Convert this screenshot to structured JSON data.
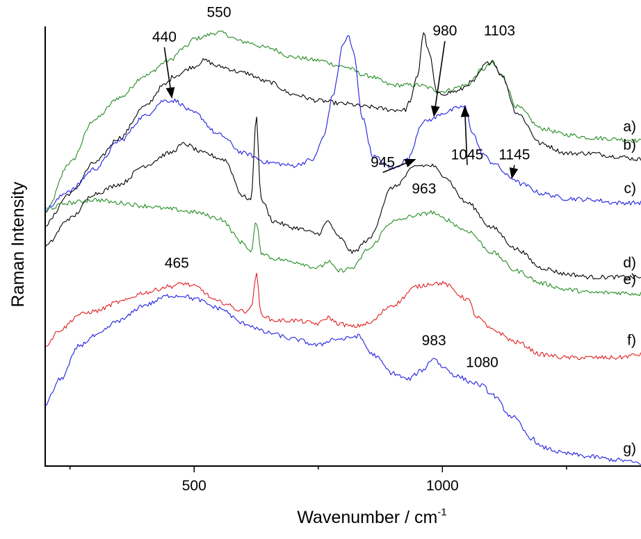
{
  "chart_data": {
    "type": "line",
    "title": "",
    "xlabel": "Wavenumber  /  cm",
    "xlabel_superscript": "-1",
    "ylabel": "Raman  Intensity",
    "xlim": [
      200,
      1400
    ],
    "ylim": [
      0,
      7.3
    ],
    "grid": false,
    "x_ticks_major": [
      500,
      1000
    ],
    "x_ticks_minor": [
      250,
      750,
      1250
    ],
    "colors": {
      "green": "#238b23",
      "black": "#000000",
      "blue": "#1f1fe0",
      "red": "#e01f1f"
    },
    "series": [
      {
        "name": "a)",
        "color": "#238b23",
        "x": [
          200,
          250,
          300,
          350,
          400,
          450,
          480,
          500,
          550,
          600,
          650,
          700,
          750,
          800,
          850,
          900,
          950,
          1000,
          1050,
          1080,
          1100,
          1120,
          1150,
          1200,
          1250,
          1300,
          1350,
          1400
        ],
        "y": [
          4.1,
          4.9,
          5.6,
          5.95,
          6.3,
          6.55,
          6.75,
          6.9,
          7.0,
          6.85,
          6.75,
          6.6,
          6.55,
          6.45,
          6.3,
          6.15,
          6.15,
          6.05,
          6.15,
          6.4,
          6.5,
          6.3,
          5.8,
          5.45,
          5.35,
          5.3,
          5.28,
          5.25
        ]
      },
      {
        "name": "b)",
        "color": "#000000",
        "x": [
          200,
          250,
          300,
          350,
          400,
          440,
          460,
          500,
          520,
          550,
          600,
          650,
          700,
          750,
          800,
          850,
          900,
          925,
          935,
          950,
          962,
          972,
          990,
          1030,
          1060,
          1090,
          1100,
          1120,
          1150,
          1200,
          1250,
          1300,
          1350,
          1400
        ],
        "y": [
          3.9,
          4.4,
          4.9,
          5.3,
          5.8,
          6.15,
          6.3,
          6.45,
          6.55,
          6.45,
          6.35,
          6.2,
          6.0,
          5.9,
          5.85,
          5.8,
          5.75,
          5.75,
          5.9,
          6.3,
          7.0,
          6.7,
          6.0,
          6.05,
          6.2,
          6.5,
          6.55,
          6.3,
          5.7,
          5.2,
          5.05,
          5.05,
          5.0,
          4.95
        ]
      },
      {
        "name": "c)",
        "color": "#1f1fe0",
        "x": [
          200,
          250,
          300,
          350,
          400,
          440,
          460,
          500,
          550,
          600,
          650,
          700,
          740,
          760,
          780,
          800,
          810,
          820,
          840,
          860,
          900,
          930,
          960,
          980,
          1000,
          1040,
          1045,
          1060,
          1080,
          1100,
          1140,
          1160,
          1200,
          1250,
          1300,
          1350,
          1400
        ],
        "y": [
          4.15,
          4.45,
          4.8,
          5.25,
          5.65,
          5.9,
          5.9,
          5.7,
          5.35,
          5.05,
          4.9,
          4.85,
          4.95,
          5.3,
          6.0,
          6.8,
          6.95,
          6.7,
          5.6,
          5.0,
          4.8,
          4.95,
          5.55,
          5.6,
          5.7,
          5.8,
          5.8,
          5.4,
          5.05,
          4.9,
          4.65,
          4.55,
          4.4,
          4.32,
          4.3,
          4.25,
          4.25
        ]
      },
      {
        "name": "d)",
        "color": "#000000",
        "x": [
          200,
          250,
          300,
          350,
          400,
          450,
          480,
          520,
          560,
          600,
          615,
          625,
          635,
          660,
          700,
          750,
          770,
          790,
          820,
          850,
          900,
          950,
          980,
          1000,
          1050,
          1100,
          1150,
          1200,
          1250,
          1300,
          1350,
          1400
        ],
        "y": [
          3.55,
          4.0,
          4.4,
          4.55,
          4.85,
          5.05,
          5.2,
          5.05,
          4.95,
          4.35,
          4.3,
          5.65,
          4.3,
          3.95,
          3.85,
          3.75,
          3.95,
          3.7,
          3.45,
          3.65,
          4.5,
          4.85,
          4.85,
          4.7,
          4.25,
          3.85,
          3.5,
          3.2,
          3.1,
          3.05,
          3.05,
          3.05
        ]
      },
      {
        "name": "e)",
        "color": "#238b23",
        "x": [
          200,
          250,
          300,
          350,
          400,
          450,
          500,
          550,
          600,
          615,
          625,
          635,
          660,
          700,
          750,
          770,
          790,
          820,
          850,
          900,
          950,
          980,
          1000,
          1050,
          1100,
          1150,
          1200,
          1250,
          1300,
          1350,
          1400
        ],
        "y": [
          4.15,
          4.25,
          4.3,
          4.25,
          4.2,
          4.15,
          4.1,
          4.0,
          3.6,
          3.45,
          3.95,
          3.45,
          3.35,
          3.3,
          3.2,
          3.3,
          3.15,
          3.2,
          3.5,
          3.95,
          4.05,
          4.1,
          4.0,
          3.8,
          3.45,
          3.15,
          2.95,
          2.85,
          2.8,
          2.8,
          2.78
        ]
      },
      {
        "name": "f)",
        "color": "#e01f1f",
        "x": [
          200,
          230,
          270,
          300,
          350,
          400,
          450,
          480,
          500,
          550,
          600,
          615,
          625,
          635,
          660,
          700,
          750,
          770,
          790,
          820,
          850,
          900,
          950,
          980,
          1000,
          1050,
          1070,
          1100,
          1150,
          1200,
          1250,
          1300,
          1350,
          1400
        ],
        "y": [
          1.95,
          2.2,
          2.45,
          2.5,
          2.65,
          2.8,
          2.9,
          2.95,
          2.9,
          2.65,
          2.5,
          2.55,
          3.1,
          2.45,
          2.35,
          2.35,
          2.3,
          2.4,
          2.3,
          2.25,
          2.3,
          2.6,
          2.9,
          2.95,
          2.95,
          2.7,
          2.4,
          2.2,
          2.0,
          1.8,
          1.75,
          1.75,
          1.75,
          1.8
        ]
      },
      {
        "name": "g)",
        "color": "#1f1fe0",
        "x": [
          200,
          230,
          270,
          300,
          350,
          400,
          450,
          480,
          500,
          550,
          600,
          650,
          700,
          750,
          780,
          800,
          830,
          860,
          900,
          930,
          960,
          983,
          1000,
          1030,
          1060,
          1080,
          1100,
          1140,
          1180,
          1200,
          1250,
          1300,
          1350,
          1400
        ],
        "y": [
          1.0,
          1.4,
          1.95,
          2.1,
          2.35,
          2.6,
          2.75,
          2.75,
          2.7,
          2.55,
          2.3,
          2.15,
          2.05,
          1.95,
          2.05,
          2.05,
          2.1,
          1.8,
          1.5,
          1.4,
          1.55,
          1.75,
          1.6,
          1.45,
          1.35,
          1.3,
          1.15,
          0.8,
          0.45,
          0.3,
          0.2,
          0.15,
          0.1,
          0.05
        ]
      }
    ],
    "annotations": [
      {
        "text": "550",
        "x": 550,
        "y": 7.25
      },
      {
        "text": "440",
        "x": 440,
        "y": 6.85,
        "arrow_to": [
          455,
          5.95
        ]
      },
      {
        "text": "980",
        "x": 1005,
        "y": 6.95,
        "arrow_to": [
          983,
          5.65
        ]
      },
      {
        "text": "1103",
        "x": 1115,
        "y": 6.95
      },
      {
        "text": "945",
        "x": 880,
        "y": 4.83,
        "arrow_to": [
          945,
          4.95
        ]
      },
      {
        "text": "1045",
        "x": 1050,
        "y": 4.95,
        "arrow_to": [
          1045,
          5.8
        ]
      },
      {
        "text": "1145",
        "x": 1145,
        "y": 4.95,
        "arrow_to": [
          1140,
          4.65
        ]
      },
      {
        "text": "963",
        "x": 963,
        "y": 4.4
      },
      {
        "text": "465",
        "x": 465,
        "y": 3.2
      },
      {
        "text": "983",
        "x": 983,
        "y": 1.95
      },
      {
        "text": "1080",
        "x": 1080,
        "y": 1.6
      }
    ]
  }
}
